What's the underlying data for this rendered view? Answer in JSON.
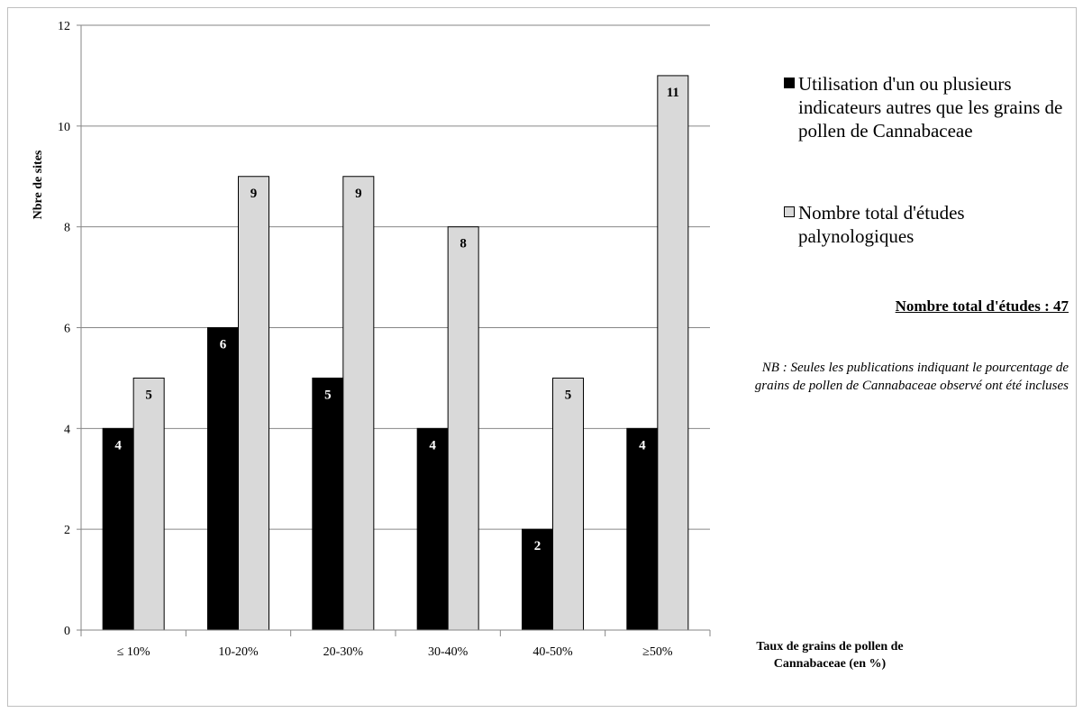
{
  "chart_data": {
    "type": "bar",
    "title": "",
    "xlabel": "Taux de grains de pollen de Cannabaceae (en %)",
    "ylabel": "Nbre de sites",
    "ylim": [
      0,
      12
    ],
    "yticks": [
      0,
      2,
      4,
      6,
      8,
      10,
      12
    ],
    "categories": [
      "≤ 10%",
      "10-20%",
      "20-30%",
      "30-40%",
      "40-50%",
      "≥50%"
    ],
    "series": [
      {
        "name": "Utilisation d'un ou plusieurs indicateurs autres que les grains de pollen de Cannabaceae",
        "color": "#000000",
        "label_color": "#ffffff",
        "values": [
          4,
          6,
          5,
          4,
          2,
          4
        ]
      },
      {
        "name": "Nombre total d'études palynologiques",
        "color": "#d9d9d9",
        "label_color": "#000000",
        "values": [
          5,
          9,
          9,
          8,
          5,
          11
        ]
      }
    ],
    "grid": true,
    "legend_position": "right"
  },
  "annotations": {
    "total": "Nombre total d'études : 47",
    "note": "NB : Seules les publications indiquant le pourcentage de grains de pollen de Cannabaceae observé ont été incluses"
  }
}
